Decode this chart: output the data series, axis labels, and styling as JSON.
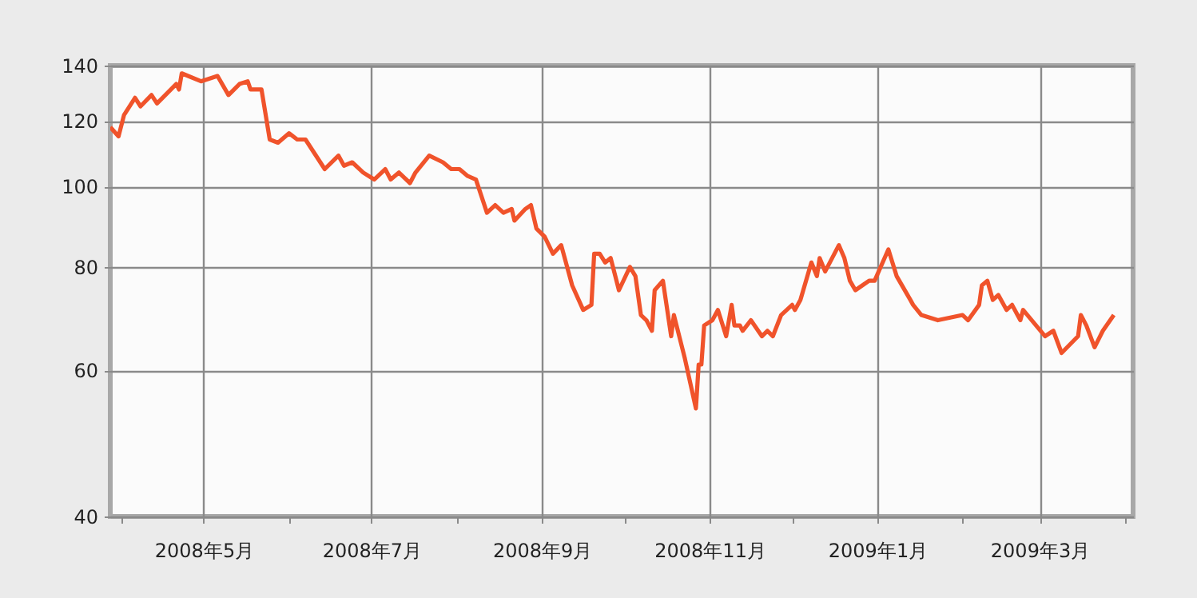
{
  "chart_data": {
    "type": "line",
    "log": "y",
    "grid": true,
    "line_style": "solid",
    "x": [
      "2008-03-28",
      "2008-03-31",
      "2008-04-02",
      "2008-04-06",
      "2008-04-08",
      "2008-04-12",
      "2008-04-14",
      "2008-04-21",
      "2008-04-22",
      "2008-04-23",
      "2008-04-30",
      "2008-05-06",
      "2008-05-10",
      "2008-05-14",
      "2008-05-17",
      "2008-05-18",
      "2008-05-22",
      "2008-05-25",
      "2008-05-28",
      "2008-06-01",
      "2008-06-04",
      "2008-06-07",
      "2008-06-14",
      "2008-06-19",
      "2008-06-21",
      "2008-06-24",
      "2008-06-28",
      "2008-07-02",
      "2008-07-06",
      "2008-07-08",
      "2008-07-11",
      "2008-07-15",
      "2008-07-17",
      "2008-07-22",
      "2008-07-27",
      "2008-07-30",
      "2008-08-02",
      "2008-08-05",
      "2008-08-08",
      "2008-08-12",
      "2008-08-15",
      "2008-08-18",
      "2008-08-21",
      "2008-08-22",
      "2008-08-26",
      "2008-08-28",
      "2008-08-30",
      "2008-09-02",
      "2008-09-05",
      "2008-09-08",
      "2008-09-12",
      "2008-09-16",
      "2008-09-19",
      "2008-09-20",
      "2008-09-22",
      "2008-09-24",
      "2008-09-26",
      "2008-09-29",
      "2008-10-03",
      "2008-10-05",
      "2008-10-07",
      "2008-10-09",
      "2008-10-11",
      "2008-10-12",
      "2008-10-15",
      "2008-10-18",
      "2008-10-19",
      "2008-10-23",
      "2008-10-27",
      "2008-10-28",
      "2008-10-29",
      "2008-10-30",
      "2008-11-02",
      "2008-11-04",
      "2008-11-07",
      "2008-11-09",
      "2008-11-10",
      "2008-11-12",
      "2008-11-13",
      "2008-11-16",
      "2008-11-20",
      "2008-11-22",
      "2008-11-24",
      "2008-11-27",
      "2008-12-01",
      "2008-12-02",
      "2008-12-04",
      "2008-12-08",
      "2008-12-10",
      "2008-12-11",
      "2008-12-13",
      "2008-12-18",
      "2008-12-20",
      "2008-12-22",
      "2008-12-24",
      "2008-12-29",
      "2008-12-31",
      "2009-01-05",
      "2009-01-08",
      "2009-01-13",
      "2009-01-14",
      "2009-01-17",
      "2009-01-23",
      "2009-02-01",
      "2009-02-03",
      "2009-02-07",
      "2009-02-08",
      "2009-02-10",
      "2009-02-12",
      "2009-02-14",
      "2009-02-17",
      "2009-02-19",
      "2009-02-22",
      "2009-02-23",
      "2009-03-03",
      "2009-03-06",
      "2009-03-09",
      "2009-03-15",
      "2009-03-16",
      "2009-03-18",
      "2009-03-21",
      "2009-03-24",
      "2009-03-28"
    ],
    "series": [
      {
        "color": "#f0532b",
        "values": [
          118,
          115,
          122,
          128,
          125,
          129,
          126,
          133,
          131,
          137,
          134,
          136,
          129,
          133,
          134,
          131,
          131,
          114,
          113,
          116,
          114,
          114,
          105,
          109,
          106,
          107,
          104,
          102,
          105,
          102,
          104,
          101,
          104,
          109,
          107,
          105,
          105,
          103,
          102,
          93,
          95,
          93,
          94,
          91,
          94,
          95,
          89,
          87,
          83,
          85,
          76,
          71,
          72,
          83,
          83,
          81,
          82,
          75,
          80,
          78,
          70,
          69,
          67,
          75,
          77,
          66,
          70,
          62,
          54,
          61,
          61,
          68,
          69,
          71,
          66,
          72,
          68,
          68,
          67,
          69,
          66,
          67,
          66,
          70,
          72,
          71,
          73,
          81,
          78,
          82,
          79,
          85,
          82,
          77,
          75,
          77,
          77,
          84,
          78,
          73,
          72,
          70,
          69,
          70,
          69,
          72,
          76,
          77,
          73,
          74,
          71,
          72,
          69,
          71,
          66,
          67,
          63,
          66,
          70,
          68,
          64,
          67,
          70
        ]
      }
    ],
    "xlim": [
      "2008-03-28",
      "2009-04-04"
    ],
    "xticks": [
      {
        "value": "2008-04-01",
        "label": null
      },
      {
        "value": "2008-05-01",
        "label": "2008年5月"
      },
      {
        "value": "2008-06-01",
        "label": null
      },
      {
        "value": "2008-07-01",
        "label": "2008年7月"
      },
      {
        "value": "2008-08-01",
        "label": null
      },
      {
        "value": "2008-09-01",
        "label": "2008年9月"
      },
      {
        "value": "2008-10-01",
        "label": null
      },
      {
        "value": "2008-11-01",
        "label": "2008年11月"
      },
      {
        "value": "2008-12-01",
        "label": null
      },
      {
        "value": "2009-01-01",
        "label": "2009年1月"
      },
      {
        "value": "2009-02-01",
        "label": null
      },
      {
        "value": "2009-03-01",
        "label": "2009年3月"
      },
      {
        "value": "2009-04-01",
        "label": null
      }
    ],
    "ylim": [
      40,
      140
    ],
    "yticks": [
      40,
      60,
      80,
      100,
      120,
      140
    ]
  }
}
